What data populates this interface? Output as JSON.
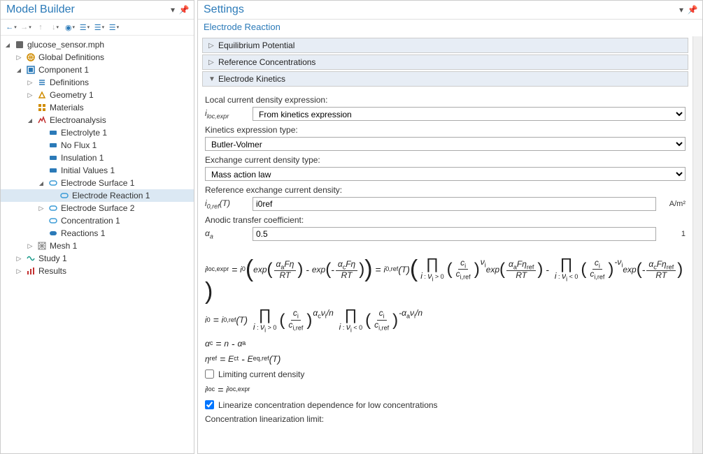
{
  "left_panel": {
    "title": "Model Builder"
  },
  "right_panel": {
    "title": "Settings",
    "subtitle": "Electrode Reaction"
  },
  "toolbar_icons": [
    "←",
    "→",
    "↑",
    "↓",
    "☰",
    "☰",
    "☰",
    "☰"
  ],
  "tree": [
    {
      "indent": 0,
      "toggle": "▲",
      "icon": "root",
      "label": "glucose_sensor.mph"
    },
    {
      "indent": 1,
      "toggle": "▷",
      "icon": "globe",
      "label": "Global Definitions"
    },
    {
      "indent": 1,
      "toggle": "▲",
      "icon": "comp",
      "label": "Component 1"
    },
    {
      "indent": 2,
      "toggle": "▷",
      "icon": "defs",
      "label": "Definitions"
    },
    {
      "indent": 2,
      "toggle": "▷",
      "icon": "geom",
      "label": "Geometry 1"
    },
    {
      "indent": 2,
      "toggle": "",
      "icon": "mat",
      "label": "Materials"
    },
    {
      "indent": 2,
      "toggle": "▲",
      "icon": "phys",
      "label": "Electroanalysis"
    },
    {
      "indent": 3,
      "toggle": "",
      "icon": "node-b",
      "label": "Electrolyte 1"
    },
    {
      "indent": 3,
      "toggle": "",
      "icon": "node-b",
      "label": "No Flux 1"
    },
    {
      "indent": 3,
      "toggle": "",
      "icon": "node-b",
      "label": "Insulation 1"
    },
    {
      "indent": 3,
      "toggle": "",
      "icon": "node-b",
      "label": "Initial Values 1"
    },
    {
      "indent": 3,
      "toggle": "▲",
      "icon": "node-c",
      "label": "Electrode Surface 1"
    },
    {
      "indent": 4,
      "toggle": "",
      "icon": "node-c",
      "label": "Electrode Reaction 1",
      "selected": true
    },
    {
      "indent": 3,
      "toggle": "▷",
      "icon": "node-c",
      "label": "Electrode Surface 2"
    },
    {
      "indent": 3,
      "toggle": "",
      "icon": "node-c",
      "label": "Concentration 1"
    },
    {
      "indent": 3,
      "toggle": "",
      "icon": "node-d",
      "label": "Reactions 1"
    },
    {
      "indent": 2,
      "toggle": "▷",
      "icon": "mesh",
      "label": "Mesh 1"
    },
    {
      "indent": 1,
      "toggle": "▷",
      "icon": "study",
      "label": "Study 1"
    },
    {
      "indent": 1,
      "toggle": "▷",
      "icon": "results",
      "label": "Results"
    }
  ],
  "sections": [
    {
      "expanded": false,
      "title": "Equilibrium Potential"
    },
    {
      "expanded": false,
      "title": "Reference Concentrations"
    },
    {
      "expanded": true,
      "title": "Electrode Kinetics"
    }
  ],
  "form": {
    "local_current_density_label": "Local current density expression:",
    "local_current_density_prefix": "i_loc,expr",
    "local_current_density_value": "From kinetics expression",
    "kinetics_type_label": "Kinetics expression type:",
    "kinetics_type_value": "Butler-Volmer",
    "exch_density_type_label": "Exchange current density type:",
    "exch_density_type_value": "Mass action law",
    "ref_exch_label": "Reference exchange current density:",
    "ref_exch_prefix": "i_0,ref(T)",
    "ref_exch_value": "i0ref",
    "ref_exch_unit": "A/m²",
    "anodic_label": "Anodic transfer coefficient:",
    "anodic_prefix": "α_a",
    "anodic_value": "0.5",
    "anodic_unit": "1",
    "limiting_checkbox": "Limiting current density",
    "linearize_checkbox": "Linearize concentration dependence for low concentrations",
    "linearize_checked": true,
    "conc_lin_label": "Concentration linearization limit:"
  },
  "equations": {
    "eq3": "α_c = n - α_a",
    "eq4": "η_ref = E_ct - E_eq,ref(T)",
    "eq5": "i_loc = i_loc,expr"
  },
  "colors": {
    "accent": "#2b7ab8",
    "section_bg": "#e7edf5",
    "selected_bg": "#dbe8f3",
    "border": "#cccccc"
  },
  "icon_colors": {
    "root": "#666",
    "globe": "#d08c00",
    "comp": "#2b7ab8",
    "defs": "#2b7ab8",
    "geom": "#d08c00",
    "mat": "#d08c00",
    "phys": "#c23030",
    "node-b": "#2b7ab8",
    "node-c": "#3a9bd6",
    "node-d": "#2b7ab8",
    "mesh": "#888",
    "study": "#1a9a8a",
    "results": "#c23030"
  }
}
